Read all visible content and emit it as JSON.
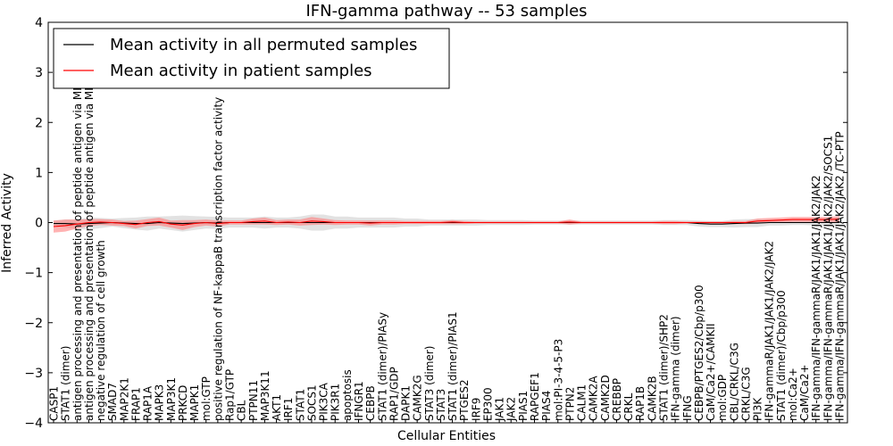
{
  "chart_data": {
    "type": "line",
    "title": "IFN-gamma pathway -- 53 samples",
    "xlabel": "Cellular Entities",
    "ylabel": "Inferred Activity",
    "ylim": [
      -4,
      4
    ],
    "yticks": [
      -4,
      -3,
      -2,
      -1,
      0,
      1,
      2,
      3,
      4
    ],
    "ytick_labels": [
      "−4",
      "−3",
      "−2",
      "−1",
      "0",
      "1",
      "2",
      "3",
      "4"
    ],
    "legend_position": "top-left",
    "categories": [
      "CASP1",
      "STAT1 (dimer)",
      "antigen processing and presentation of peptide antigen via MHC class I",
      "antigen processing and presentation of peptide antigen via MHC class II",
      "negative regulation of cell growth",
      "SMAD7",
      "MAP2K1",
      "FRAP1",
      "RAP1A",
      "MAPK3",
      "MAP3K1",
      "PRKCD",
      "MAPK1",
      "mol:GTP",
      "positive regulation of NF-kappaB transcription factor activity",
      "Rap1/GTP",
      "CBL",
      "PTPN11",
      "MAP3K11",
      "AKT1",
      "IRF1",
      "STAT1",
      "SOCS1",
      "PIK3CA",
      "PIK3R1",
      "apoptosis",
      "IFNGR1",
      "CEBPB",
      "STAT1 (dimer)/PIASy",
      "RAP1/GDP",
      "DAPK1",
      "CAMK2G",
      "STAT3 (dimer)",
      "STAT3",
      "STAT1 (dimer)/PIAS1",
      "PTGES2",
      "IRF9",
      "EP300",
      "JAK1",
      "JAK2",
      "PIAS1",
      "RAPGEF1",
      "PIAS4",
      "mol:PI-3-4-5-P3",
      "PTPN2",
      "CALM1",
      "CAMK2A",
      "CAMK2D",
      "CREBBP",
      "CRKL",
      "RAP1B",
      "CAMK2B",
      "STAT1 (dimer)/SHP2",
      "IFN-gamma (dimer)",
      "IFNG",
      "CEBPB/PTGES2/Cbp/p300",
      "CaM/Ca2+/CAMKII",
      "mol:GDP",
      "CBL/CRKL/C3G",
      "CRKL/C3G",
      "PI3K",
      "IFN-gammaR/JAK1/JAK1/JAK2/JAK2",
      "STAT1 (dimer)/Cbp/p300",
      "mol:Ca2+",
      "CaM/Ca2+",
      "IFN-gamma/IFN-gammaR/JAK1/JAK1/JAK2/JAK2",
      "IFN-gamma/IFN-gammaR/JAK1/JAK1/JAK2/JAK2/SOCS1",
      "IFN-gamma/IFN-gammaR/JAK1/JAK1/JAK2/JAK2  /TC-PTP"
    ],
    "series": [
      {
        "name": "Mean activity in all permuted samples",
        "color": "#000000",
        "values": [
          -0.02,
          -0.02,
          -0.03,
          -0.02,
          -0.01,
          0.0,
          -0.01,
          -0.02,
          -0.02,
          0.0,
          -0.01,
          -0.02,
          -0.01,
          0.0,
          -0.01,
          0.0,
          0.0,
          0.0,
          0.0,
          0.0,
          0.0,
          0.0,
          0.0,
          0.0,
          0.0,
          0.0,
          0.0,
          0.0,
          0.0,
          0.0,
          0.0,
          0.0,
          0.0,
          0.0,
          0.0,
          0.0,
          0.0,
          0.0,
          0.0,
          0.0,
          0.0,
          0.0,
          0.0,
          0.0,
          0.0,
          0.0,
          0.0,
          0.0,
          0.0,
          0.0,
          0.0,
          0.0,
          0.0,
          0.0,
          0.0,
          -0.02,
          -0.03,
          -0.03,
          -0.02,
          -0.01,
          -0.01,
          0.0,
          0.0,
          0.0,
          0.0,
          0.0,
          0.0,
          0.0
        ],
        "band": [
          0.06,
          0.08,
          0.1,
          0.12,
          0.1,
          0.08,
          0.1,
          0.12,
          0.14,
          0.12,
          0.14,
          0.16,
          0.14,
          0.12,
          0.12,
          0.1,
          0.1,
          0.1,
          0.12,
          0.1,
          0.1,
          0.12,
          0.16,
          0.16,
          0.12,
          0.12,
          0.1,
          0.1,
          0.1,
          0.1,
          0.08,
          0.08,
          0.06,
          0.06,
          0.06,
          0.06,
          0.06,
          0.05,
          0.05,
          0.05,
          0.05,
          0.04,
          0.04,
          0.04,
          0.04,
          0.04,
          0.04,
          0.04,
          0.04,
          0.04,
          0.04,
          0.04,
          0.05,
          0.05,
          0.05,
          0.06,
          0.06,
          0.06,
          0.08,
          0.08,
          0.08,
          0.06,
          0.06,
          0.05,
          0.05,
          0.06,
          0.06,
          0.06
        ]
      },
      {
        "name": "Mean activity in patient samples",
        "color": "#ff0000",
        "values": [
          -0.08,
          -0.06,
          -0.03,
          0.0,
          0.01,
          0.0,
          -0.02,
          -0.04,
          0.0,
          0.02,
          -0.03,
          -0.05,
          -0.02,
          0.0,
          -0.02,
          0.0,
          0.0,
          0.02,
          0.03,
          0.0,
          0.01,
          0.0,
          0.03,
          0.02,
          0.0,
          0.0,
          0.0,
          -0.01,
          0.0,
          0.0,
          0.0,
          0.0,
          0.0,
          0.0,
          0.01,
          0.0,
          0.0,
          0.0,
          0.0,
          0.0,
          0.0,
          0.0,
          0.0,
          0.0,
          0.01,
          0.0,
          0.0,
          0.0,
          0.0,
          0.0,
          0.0,
          0.0,
          0.0,
          0.0,
          0.0,
          0.0,
          0.0,
          0.0,
          0.0,
          0.0,
          0.03,
          0.04,
          0.05,
          0.06,
          0.06,
          0.06,
          0.06,
          0.07
        ],
        "band": [
          0.12,
          0.12,
          0.09,
          0.07,
          0.06,
          0.06,
          0.05,
          0.08,
          0.07,
          0.08,
          0.07,
          0.1,
          0.07,
          0.06,
          0.06,
          0.04,
          0.04,
          0.06,
          0.07,
          0.05,
          0.05,
          0.06,
          0.08,
          0.06,
          0.05,
          0.04,
          0.04,
          0.05,
          0.04,
          0.04,
          0.03,
          0.03,
          0.03,
          0.03,
          0.04,
          0.03,
          0.02,
          0.02,
          0.02,
          0.02,
          0.02,
          0.02,
          0.02,
          0.02,
          0.05,
          0.02,
          0.02,
          0.02,
          0.02,
          0.02,
          0.02,
          0.02,
          0.03,
          0.03,
          0.02,
          0.02,
          0.02,
          0.02,
          0.03,
          0.03,
          0.05,
          0.05,
          0.05,
          0.05,
          0.05,
          0.05,
          0.05,
          0.06
        ]
      }
    ]
  }
}
